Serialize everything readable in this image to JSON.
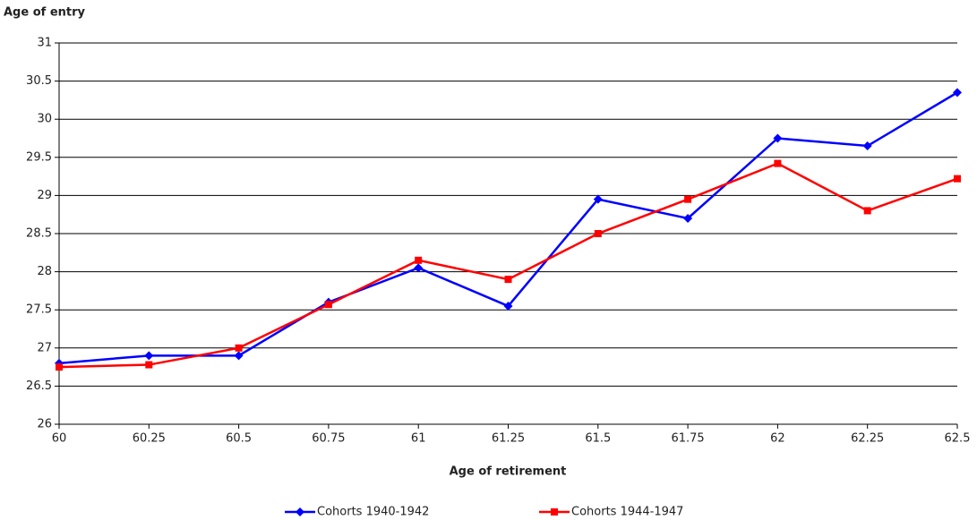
{
  "chart_data": {
    "type": "line",
    "y_label": "Age of entry",
    "x_label": "Age of retirement",
    "x": [
      60,
      60.25,
      60.5,
      60.75,
      61,
      61.25,
      61.5,
      61.75,
      62,
      62.25,
      62.5
    ],
    "series": [
      {
        "name": "Cohorts 1940-1942",
        "color": "#0000ff",
        "marker": "diamond",
        "values": [
          26.8,
          26.9,
          26.9,
          27.6,
          28.05,
          27.55,
          28.95,
          28.7,
          29.75,
          29.65,
          30.35
        ]
      },
      {
        "name": "Cohorts 1944-1947",
        "color": "#ff0000",
        "marker": "square",
        "values": [
          26.75,
          26.78,
          27.0,
          27.57,
          28.15,
          27.9,
          28.5,
          28.95,
          29.42,
          28.8,
          29.22
        ]
      }
    ],
    "xlim": [
      60,
      62.5
    ],
    "xticks": [
      60,
      60.25,
      60.5,
      60.75,
      61,
      61.25,
      61.5,
      61.75,
      62,
      62.25,
      62.5
    ],
    "ylim": [
      26,
      31
    ],
    "yticks": [
      26,
      26.5,
      27,
      27.5,
      28,
      28.5,
      29,
      29.5,
      30,
      30.5,
      31
    ],
    "grid": true,
    "legend": "bottom"
  }
}
